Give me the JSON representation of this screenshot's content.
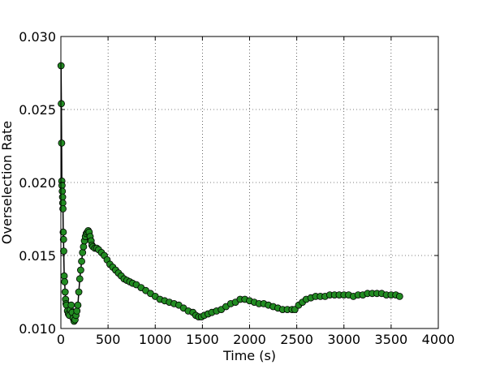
{
  "chart_data": {
    "type": "scatter",
    "title": "",
    "xlabel": "Time (s)",
    "ylabel": "Overselection Rate",
    "xlim": [
      0,
      4000
    ],
    "ylim": [
      0.01,
      0.03
    ],
    "xticks": [
      0,
      500,
      1000,
      1500,
      2000,
      2500,
      3000,
      3500,
      4000
    ],
    "xtick_labels": [
      "0",
      "500",
      "1000",
      "1500",
      "2000",
      "2500",
      "3000",
      "3500",
      "4000"
    ],
    "yticks": [
      0.01,
      0.015,
      0.02,
      0.025,
      0.03
    ],
    "ytick_labels": [
      "0.010",
      "0.015",
      "0.020",
      "0.025",
      "0.030"
    ],
    "grid": true,
    "marker_color": "#228b22",
    "marker_edge_color": "#000000",
    "line_color": "#000000",
    "series": [
      {
        "x": [
          2,
          5,
          8,
          10,
          12,
          15,
          18,
          20,
          22,
          25,
          28,
          30,
          35,
          40,
          45,
          50,
          55,
          60,
          70,
          80,
          90,
          100,
          110,
          120,
          130,
          140,
          150,
          160,
          170,
          180,
          190,
          200,
          210,
          220,
          230,
          240,
          250,
          260,
          270,
          280,
          290,
          300,
          310,
          320,
          330,
          340,
          360,
          380,
          400,
          430,
          460,
          490,
          520,
          550,
          580,
          610,
          640,
          670,
          700,
          730,
          760,
          800,
          850,
          900,
          950,
          1000,
          1050,
          1100,
          1150,
          1200,
          1250,
          1300,
          1350,
          1400,
          1430,
          1460,
          1490,
          1520,
          1560,
          1600,
          1650,
          1700,
          1750,
          1800,
          1850,
          1900,
          1950,
          2000,
          2050,
          2100,
          2150,
          2200,
          2250,
          2300,
          2350,
          2400,
          2450,
          2480,
          2520,
          2560,
          2600,
          2650,
          2700,
          2750,
          2800,
          2850,
          2900,
          2950,
          3000,
          3050,
          3100,
          3150,
          3200,
          3250,
          3300,
          3350,
          3400,
          3450,
          3500,
          3550,
          3590
        ],
        "y": [
          0.028,
          0.0254,
          0.0227,
          0.0201,
          0.0198,
          0.0194,
          0.019,
          0.0186,
          0.0182,
          0.0166,
          0.0161,
          0.0153,
          0.0136,
          0.0132,
          0.0125,
          0.012,
          0.0117,
          0.0116,
          0.0112,
          0.011,
          0.0109,
          0.0113,
          0.0116,
          0.0111,
          0.0107,
          0.0105,
          0.0106,
          0.0109,
          0.0112,
          0.0116,
          0.0125,
          0.0134,
          0.014,
          0.0146,
          0.0152,
          0.0156,
          0.016,
          0.0163,
          0.0165,
          0.0166,
          0.0167,
          0.0166,
          0.0163,
          0.016,
          0.0157,
          0.0156,
          0.0155,
          0.0155,
          0.0154,
          0.0152,
          0.015,
          0.0147,
          0.0144,
          0.0142,
          0.014,
          0.0138,
          0.0136,
          0.0134,
          0.0133,
          0.0132,
          0.0131,
          0.013,
          0.0128,
          0.0126,
          0.0124,
          0.0122,
          0.012,
          0.0119,
          0.0118,
          0.0117,
          0.0116,
          0.0114,
          0.0112,
          0.0111,
          0.0109,
          0.0108,
          0.0108,
          0.0109,
          0.011,
          0.0111,
          0.0112,
          0.0113,
          0.0115,
          0.0117,
          0.0118,
          0.012,
          0.012,
          0.0119,
          0.0118,
          0.0117,
          0.0117,
          0.0116,
          0.0115,
          0.0114,
          0.0113,
          0.0113,
          0.0113,
          0.0113,
          0.0116,
          0.0118,
          0.012,
          0.0121,
          0.0122,
          0.0122,
          0.0122,
          0.0123,
          0.0123,
          0.0123,
          0.0123,
          0.0123,
          0.0122,
          0.0123,
          0.0123,
          0.0124,
          0.0124,
          0.0124,
          0.0124,
          0.0123,
          0.0123,
          0.0123,
          0.0122
        ]
      }
    ]
  }
}
